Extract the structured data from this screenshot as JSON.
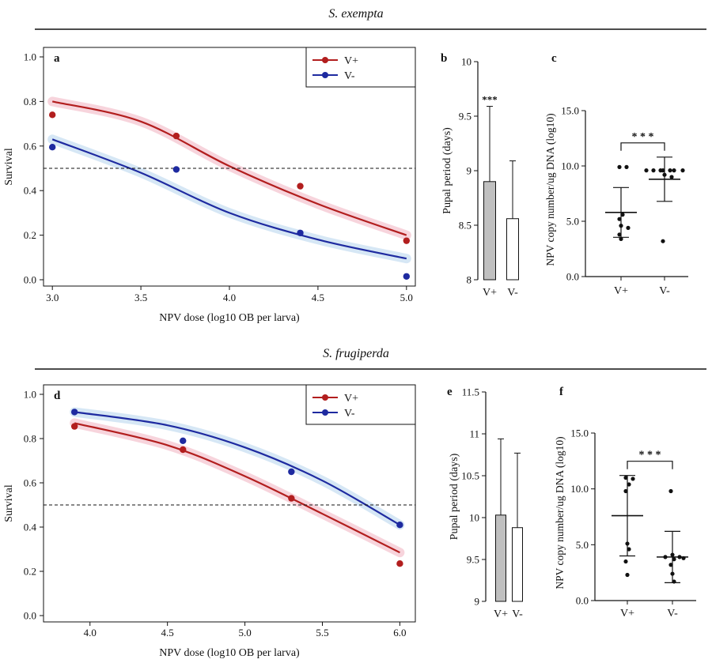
{
  "figure": {
    "section_titles": [
      "S. exempta",
      "S. frugiperda"
    ]
  },
  "colors": {
    "v_plus": "#b21e1e",
    "v_minus": "#1e2aa0",
    "v_plus_band": "#f6cdd6",
    "v_minus_band": "#cfe3f3",
    "bar_gray": "#c0c0c0",
    "bar_white": "#ffffff",
    "ink": "#111111"
  },
  "chart_data": [
    {
      "id": "a",
      "panel_label": "a",
      "type": "scatter",
      "xlabel": "NPV dose (log10 OB per larva)",
      "ylabel": "Survival",
      "xlim": [
        2.95,
        5.05
      ],
      "ylim": [
        0.0,
        1.0
      ],
      "x_ticks": [
        3.0,
        3.5,
        4.0,
        4.5,
        5.0
      ],
      "x_tick_labels": [
        "3.0",
        "3.5",
        "4.0",
        "4.5",
        "5.0"
      ],
      "y_ticks": [
        0.0,
        0.2,
        0.4,
        0.6,
        0.8,
        1.0
      ],
      "y_tick_labels": [
        "0.0",
        "0.2",
        "0.4",
        "0.6",
        "0.8",
        "1.0"
      ],
      "reference_line_y": 0.5,
      "legend_position": "top-right",
      "series": [
        {
          "name": "V+",
          "color_key": "v_plus",
          "band_key": "v_plus_band",
          "points": [
            [
              3.0,
              0.74
            ],
            [
              3.7,
              0.645
            ],
            [
              4.4,
              0.42
            ],
            [
              5.0,
              0.175
            ]
          ],
          "fit": [
            [
              3.0,
              0.8
            ],
            [
              3.5,
              0.71
            ],
            [
              4.0,
              0.51
            ],
            [
              4.5,
              0.34
            ],
            [
              5.0,
              0.2
            ]
          ]
        },
        {
          "name": "V-",
          "color_key": "v_minus",
          "band_key": "v_minus_band",
          "points": [
            [
              3.0,
              0.595
            ],
            [
              3.7,
              0.495
            ],
            [
              4.4,
              0.21
            ],
            [
              5.0,
              0.015
            ]
          ],
          "fit": [
            [
              3.0,
              0.63
            ],
            [
              3.5,
              0.48
            ],
            [
              4.0,
              0.3
            ],
            [
              4.5,
              0.18
            ],
            [
              5.0,
              0.095
            ]
          ]
        }
      ]
    },
    {
      "id": "b",
      "panel_label": "b",
      "type": "bar",
      "ylabel": "Pupal period (days)",
      "ylim": [
        8.0,
        10.0
      ],
      "y_ticks": [
        8.0,
        8.5,
        9.0,
        9.5,
        10.0
      ],
      "y_tick_labels": [
        "8",
        "8.5",
        "9",
        "9.5",
        "10"
      ],
      "categories": [
        "V+",
        "V-"
      ],
      "values": [
        8.9,
        8.56
      ],
      "error_upper": [
        9.59,
        9.09
      ],
      "bar_color_keys": [
        "bar_gray",
        "bar_white"
      ],
      "significance": [
        "***",
        ""
      ]
    },
    {
      "id": "c",
      "panel_label": "c",
      "type": "scatter",
      "ylabel": "NPV copy number/ug DNA (log10)",
      "ylim": [
        0.0,
        15.0
      ],
      "y_ticks": [
        0.0,
        5.0,
        10.0,
        15.0
      ],
      "y_tick_labels": [
        "0.0",
        "5.0",
        "10.0",
        "15.0"
      ],
      "categories": [
        "V+",
        "V-"
      ],
      "groups": [
        {
          "name": "V+",
          "mean": 5.8,
          "sd_upper": 8.05,
          "sd_lower": 3.55,
          "points": [
            9.9,
            9.9,
            5.6,
            5.2,
            4.6,
            4.4,
            3.8,
            3.4
          ]
        },
        {
          "name": "V-",
          "mean": 8.8,
          "sd_upper": 10.8,
          "sd_lower": 6.8,
          "points": [
            9.6,
            9.6,
            9.6,
            9.6,
            9.6,
            9.6,
            9.6,
            9.2,
            9.0,
            3.2
          ]
        }
      ],
      "significance": "* * *"
    },
    {
      "id": "d",
      "panel_label": "d",
      "type": "scatter",
      "xlabel": "NPV dose (log10 OB per larva)",
      "ylabel": "Survival",
      "xlim": [
        3.7,
        6.1
      ],
      "ylim": [
        0.0,
        1.0
      ],
      "x_ticks": [
        4.0,
        4.5,
        5.0,
        5.5,
        6.0
      ],
      "x_tick_labels": [
        "4.0",
        "4.5",
        "5.0",
        "5.5",
        "6.0"
      ],
      "y_ticks": [
        0.0,
        0.2,
        0.4,
        0.6,
        0.8,
        1.0
      ],
      "y_tick_labels": [
        "0.0",
        "0.2",
        "0.4",
        "0.6",
        "0.8",
        "1.0"
      ],
      "reference_line_y": 0.5,
      "legend_position": "top-right",
      "series": [
        {
          "name": "V+",
          "color_key": "v_plus",
          "band_key": "v_plus_band",
          "points": [
            [
              3.9,
              0.855
            ],
            [
              4.6,
              0.75
            ],
            [
              5.3,
              0.53
            ],
            [
              6.0,
              0.235
            ]
          ],
          "fit": [
            [
              3.9,
              0.87
            ],
            [
              4.5,
              0.77
            ],
            [
              5.0,
              0.63
            ],
            [
              5.5,
              0.46
            ],
            [
              6.0,
              0.285
            ]
          ]
        },
        {
          "name": "V-",
          "color_key": "v_minus",
          "band_key": "v_minus_band",
          "points": [
            [
              3.9,
              0.92
            ],
            [
              4.6,
              0.79
            ],
            [
              5.3,
              0.65
            ],
            [
              6.0,
              0.41
            ]
          ],
          "fit": [
            [
              3.9,
              0.92
            ],
            [
              4.5,
              0.86
            ],
            [
              5.0,
              0.76
            ],
            [
              5.5,
              0.61
            ],
            [
              6.0,
              0.41
            ]
          ]
        }
      ]
    },
    {
      "id": "e",
      "panel_label": "e",
      "type": "bar",
      "ylabel": "Pupal period (days)",
      "ylim": [
        9.0,
        11.5
      ],
      "y_ticks": [
        9.0,
        9.5,
        10.0,
        10.5,
        11.0,
        11.5
      ],
      "y_tick_labels": [
        "9",
        "9.5",
        "10",
        "10.5",
        "11",
        "11.5"
      ],
      "categories": [
        "V+",
        "V-"
      ],
      "values": [
        10.03,
        9.88
      ],
      "error_upper": [
        10.94,
        10.77
      ],
      "bar_color_keys": [
        "bar_gray",
        "bar_white"
      ],
      "significance": [
        "",
        ""
      ]
    },
    {
      "id": "f",
      "panel_label": "f",
      "type": "scatter",
      "ylabel": "NPV copy number/ug DNA (log10)",
      "ylim": [
        0.0,
        15.0
      ],
      "y_ticks": [
        0.0,
        5.0,
        10.0,
        15.0
      ],
      "y_tick_labels": [
        "0.0",
        "5.0",
        "10.0",
        "15.0"
      ],
      "categories": [
        "V+",
        "V-"
      ],
      "groups": [
        {
          "name": "V+",
          "mean": 7.6,
          "sd_upper": 11.2,
          "sd_lower": 4.0,
          "points": [
            11.0,
            10.9,
            10.4,
            9.8,
            5.1,
            4.6,
            3.5,
            2.3
          ]
        },
        {
          "name": "V-",
          "mean": 3.9,
          "sd_upper": 6.2,
          "sd_lower": 1.6,
          "points": [
            9.8,
            4.1,
            3.9,
            3.9,
            3.8,
            3.7,
            3.2,
            2.4,
            1.7
          ]
        }
      ],
      "significance": "* * *"
    }
  ]
}
